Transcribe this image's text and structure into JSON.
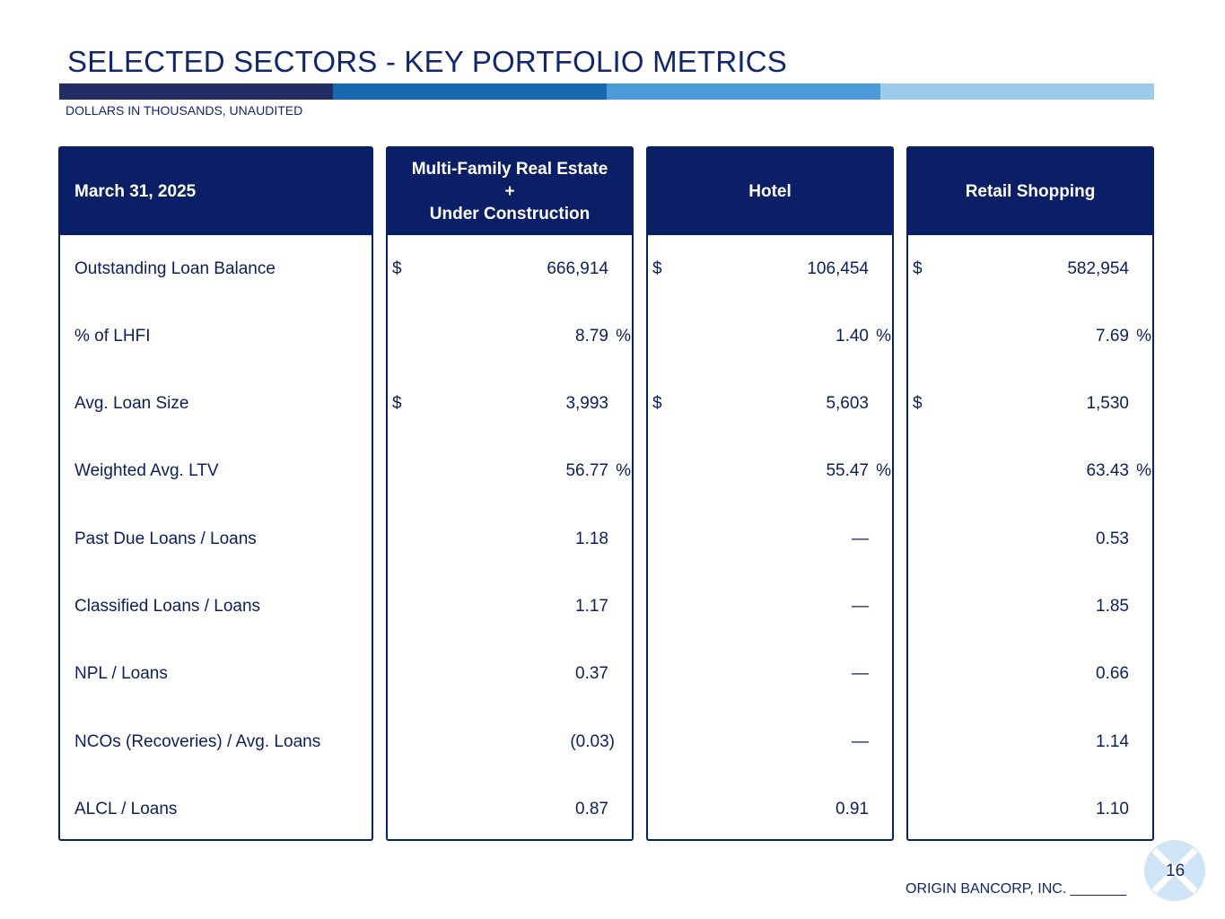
{
  "page": {
    "title": "SELECTED SECTORS - KEY PORTFOLIO METRICS",
    "subtitle": "DOLLARS IN THOUSANDS, UNAUDITED",
    "bar_colors": [
      "#232c63",
      "#1668b0",
      "#4a9bd8",
      "#9ccbeb"
    ],
    "page_number": "16",
    "footer": "ORIGIN BANCORP, INC. _______"
  },
  "table": {
    "date_header": "March 31, 2025",
    "columns": [
      {
        "header_lines": [
          "Multi-Family Real Estate",
          "+",
          "Under Construction"
        ]
      },
      {
        "header_lines": [
          "Hotel"
        ]
      },
      {
        "header_lines": [
          "Retail Shopping"
        ]
      }
    ],
    "rows": [
      {
        "label": "Outstanding Loan Balance",
        "cells": [
          {
            "prefix": "$",
            "value": "666,914",
            "suffix": ""
          },
          {
            "prefix": "$",
            "value": "106,454",
            "suffix": ""
          },
          {
            "prefix": "$",
            "value": "582,954",
            "suffix": ""
          }
        ]
      },
      {
        "label": "% of LHFI",
        "cells": [
          {
            "prefix": "",
            "value": "8.79",
            "suffix": "%"
          },
          {
            "prefix": "",
            "value": "1.40",
            "suffix": "%"
          },
          {
            "prefix": "",
            "value": "7.69",
            "suffix": "%"
          }
        ]
      },
      {
        "label": "Avg. Loan Size",
        "cells": [
          {
            "prefix": "$",
            "value": "3,993",
            "suffix": ""
          },
          {
            "prefix": "$",
            "value": "5,603",
            "suffix": ""
          },
          {
            "prefix": "$",
            "value": "1,530",
            "suffix": ""
          }
        ]
      },
      {
        "label": "Weighted Avg. LTV",
        "cells": [
          {
            "prefix": "",
            "value": "56.77",
            "suffix": "%"
          },
          {
            "prefix": "",
            "value": "55.47",
            "suffix": "%"
          },
          {
            "prefix": "",
            "value": "63.43",
            "suffix": "%"
          }
        ]
      },
      {
        "label": "Past Due Loans / Loans",
        "cells": [
          {
            "prefix": "",
            "value": "1.18",
            "suffix": ""
          },
          {
            "prefix": "",
            "value": "—",
            "suffix": ""
          },
          {
            "prefix": "",
            "value": "0.53",
            "suffix": ""
          }
        ]
      },
      {
        "label": "Classified Loans / Loans",
        "cells": [
          {
            "prefix": "",
            "value": "1.17",
            "suffix": ""
          },
          {
            "prefix": "",
            "value": "—",
            "suffix": ""
          },
          {
            "prefix": "",
            "value": "1.85",
            "suffix": ""
          }
        ]
      },
      {
        "label": "NPL / Loans",
        "cells": [
          {
            "prefix": "",
            "value": "0.37",
            "suffix": ""
          },
          {
            "prefix": "",
            "value": "—",
            "suffix": ""
          },
          {
            "prefix": "",
            "value": "0.66",
            "suffix": ""
          }
        ]
      },
      {
        "label": "NCOs (Recoveries) / Avg. Loans",
        "cells": [
          {
            "prefix": "",
            "value": "(0.03)",
            "suffix": ""
          },
          {
            "prefix": "",
            "value": "—",
            "suffix": ""
          },
          {
            "prefix": "",
            "value": "1.14",
            "suffix": ""
          }
        ]
      },
      {
        "label": "ALCL / Loans",
        "cells": [
          {
            "prefix": "",
            "value": "0.87",
            "suffix": ""
          },
          {
            "prefix": "",
            "value": "0.91",
            "suffix": ""
          },
          {
            "prefix": "",
            "value": "1.10",
            "suffix": ""
          }
        ]
      }
    ]
  }
}
